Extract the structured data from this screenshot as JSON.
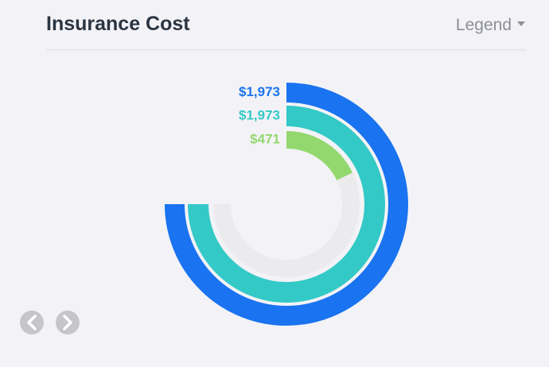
{
  "ui": {
    "legend_button": "Legend"
  },
  "chart_data": {
    "type": "radialBar",
    "title": "Insurance Cost",
    "values": [
      1973,
      1973,
      471
    ],
    "value_labels": [
      "$1,973",
      "$1,973",
      "$471"
    ],
    "colors": [
      "#1a73f0",
      "#33c9c6",
      "#93d86f"
    ],
    "track_color": "#ebebed"
  }
}
